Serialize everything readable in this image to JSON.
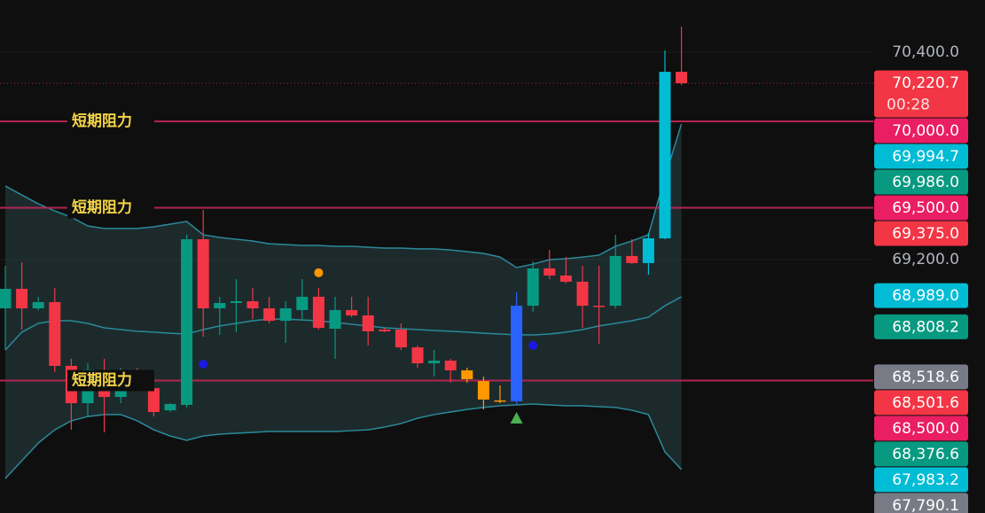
{
  "chart_data": {
    "type": "candlestick",
    "ylim": [
      67733.4,
      70702.6
    ],
    "yticks": [
      {
        "value": 70400,
        "label": "70,400.0"
      },
      {
        "value": 69200,
        "label": "69,200.0"
      }
    ],
    "grid": true,
    "candles": {
      "open": [
        68918,
        69031,
        68918,
        68954,
        68585,
        68369,
        68559,
        68405,
        68549,
        68456,
        68328,
        68359,
        69318,
        68918,
        68949,
        68959,
        68918,
        68846,
        68908,
        68985,
        68800,
        68908,
        68877,
        68795,
        68795,
        68692,
        68600,
        68615,
        68559,
        68497,
        68385,
        68380,
        68933,
        69149,
        69108,
        69072,
        68933,
        68933,
        69221,
        69180,
        69323,
        70287
      ],
      "high": [
        69164,
        69185,
        68985,
        69036,
        68626,
        68600,
        68626,
        68574,
        68574,
        68497,
        68369,
        69344,
        69487,
        68985,
        69087,
        69036,
        68985,
        68959,
        69087,
        69036,
        68985,
        68985,
        68985,
        68805,
        68831,
        68703,
        68677,
        68626,
        68574,
        68523,
        68472,
        69010,
        69190,
        69256,
        69215,
        69164,
        69164,
        69344,
        69318,
        69354,
        70410,
        70549
      ],
      "low": [
        68677,
        68795,
        68908,
        68549,
        68215,
        68292,
        68200,
        68369,
        68472,
        68292,
        68318,
        68344,
        68754,
        68764,
        68780,
        68856,
        68831,
        68718,
        68856,
        68795,
        68626,
        68867,
        68703,
        68780,
        68677,
        68574,
        68523,
        68487,
        68487,
        68333,
        68369,
        68364,
        68898,
        69087,
        69062,
        68805,
        68713,
        68918,
        69174,
        69113,
        69318,
        70210
      ],
      "close": [
        69031,
        68918,
        68954,
        68585,
        68369,
        68564,
        68405,
        68549,
        68497,
        68318,
        68364,
        69318,
        68918,
        68949,
        68959,
        68918,
        68846,
        68918,
        68985,
        68805,
        68908,
        68877,
        68785,
        68785,
        68692,
        68600,
        68615,
        68559,
        68508,
        68390,
        68380,
        68933,
        69149,
        69108,
        69072,
        68933,
        68928,
        69221,
        69180,
        69323,
        70287,
        70220.7
      ],
      "colors": [
        "#089981",
        "#f23645",
        "#089981",
        "#f23645",
        "#f23645",
        "#089981",
        "#f23645",
        "#089981",
        "#f23645",
        "#f23645",
        "#089981",
        "#089981",
        "#f23645",
        "#089981",
        "#089981",
        "#f23645",
        "#f23645",
        "#089981",
        "#089981",
        "#f23645",
        "#089981",
        "#f23645",
        "#f23645",
        "#f23645",
        "#f23645",
        "#f23645",
        "#089981",
        "#f23645",
        "#ff9800",
        "#ff9800",
        "#ff9800",
        "#2962ff",
        "#089981",
        "#f23645",
        "#f23645",
        "#f23645",
        "#f23645",
        "#089981",
        "#f23645",
        "#00bcd4",
        "#00bcd4",
        "#f23645"
      ]
    },
    "bollinger": {
      "color": "#2a8a9a",
      "upper": [
        69626,
        69574,
        69523,
        69482,
        69446,
        69395,
        69380,
        69380,
        69380,
        69390,
        69405,
        69421,
        69344,
        69328,
        69318,
        69308,
        69292,
        69287,
        69282,
        69282,
        69277,
        69277,
        69272,
        69267,
        69267,
        69262,
        69262,
        69256,
        69246,
        69236,
        69215,
        69154,
        69174,
        69200,
        69205,
        69215,
        69226,
        69277,
        69308,
        69344,
        69677,
        69985
      ],
      "middle": [
        68677,
        68780,
        68831,
        68846,
        68846,
        68831,
        68805,
        68795,
        68785,
        68780,
        68774,
        68769,
        68795,
        68816,
        68831,
        68846,
        68856,
        68856,
        68851,
        68846,
        68836,
        68826,
        68816,
        68805,
        68800,
        68795,
        68790,
        68785,
        68780,
        68774,
        68769,
        68764,
        68764,
        68769,
        68780,
        68795,
        68816,
        68831,
        68846,
        68867,
        68933,
        68985
      ],
      "lower": [
        67933,
        68036,
        68138,
        68215,
        68267,
        68292,
        68303,
        68303,
        68267,
        68215,
        68179,
        68154,
        68179,
        68190,
        68195,
        68200,
        68205,
        68205,
        68205,
        68205,
        68205,
        68210,
        68215,
        68231,
        68251,
        68282,
        68303,
        68318,
        68333,
        68344,
        68354,
        68359,
        68364,
        68359,
        68354,
        68354,
        68349,
        68344,
        68328,
        68303,
        68087,
        67985
      ]
    },
    "markers": [
      {
        "index": 19,
        "price": 69124,
        "color": "#ff9800",
        "shape": "circle"
      },
      {
        "index": 12,
        "price": 68595,
        "color": "#1a1adf",
        "shape": "circle"
      },
      {
        "index": 32,
        "price": 68703,
        "color": "#1a1adf",
        "shape": "circle"
      },
      {
        "index": 31,
        "price": 68282,
        "color": "#4caf50",
        "shape": "triangle"
      }
    ],
    "levels": [
      {
        "label": "短期阻力",
        "value": 70000,
        "color": "#b2254f"
      },
      {
        "label": "短期阻力",
        "value": 69500,
        "color": "#b2254f"
      },
      {
        "label": "短期阻力",
        "value": 68500,
        "color": "#b2254f"
      }
    ],
    "last_price": {
      "value": 70220.7,
      "color": "#f23645"
    },
    "price_labels": [
      {
        "value": 70220.7,
        "label": "70,220.7",
        "color": "#f23645",
        "countdown": "00:28"
      },
      {
        "value": 70000,
        "label": "70,000.0",
        "color": "#e91e63"
      },
      {
        "value": 69994.7,
        "label": "69,994.7",
        "color": "#00bcd4"
      },
      {
        "value": 69986,
        "label": "69,986.0",
        "color": "#089981"
      },
      {
        "value": 69500,
        "label": "69,500.0",
        "color": "#e91e63"
      },
      {
        "value": 69375,
        "label": "69,375.0",
        "color": "#f23645"
      },
      {
        "value": 68989,
        "label": "68,989.0",
        "color": "#00bcd4"
      },
      {
        "value": 68808.2,
        "label": "68,808.2",
        "color": "#089981"
      },
      {
        "value": 68518.6,
        "label": "68,518.6",
        "color": "#787b86"
      },
      {
        "value": 68501.6,
        "label": "68,501.6",
        "color": "#f23645"
      },
      {
        "value": 68500,
        "label": "68,500.0",
        "color": "#e91e63"
      },
      {
        "value": 68376.6,
        "label": "68,376.6",
        "color": "#089981"
      },
      {
        "value": 67983.2,
        "label": "67,983.2",
        "color": "#00bcd4"
      },
      {
        "value": 67790.1,
        "label": "67,790.1",
        "color": "#787b86"
      }
    ]
  }
}
